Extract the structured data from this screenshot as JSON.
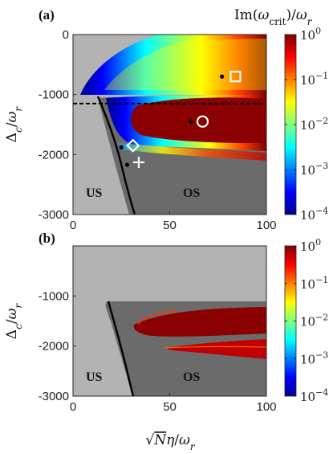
{
  "colorbar_title": "Im(ω_crit)/ω_r",
  "chart_data": [
    {
      "panel_label": "(a)",
      "type": "heatmap",
      "xlabel": "√N η/ω_r",
      "ylabel": "Δ_c/ω_r",
      "xlim": [
        0,
        100
      ],
      "ylim": [
        -3000,
        0
      ],
      "xticks": [
        "0",
        "50",
        "100"
      ],
      "yticks": [
        "0",
        "-1000",
        "-2000",
        "-3000"
      ],
      "colorbar": {
        "scale": "log",
        "range": [
          0.0001,
          1
        ],
        "ticks": [
          {
            "base": "10",
            "exp": "0"
          },
          {
            "base": "10",
            "exp": "−1"
          },
          {
            "base": "10",
            "exp": "−2"
          },
          {
            "base": "10",
            "exp": "−3"
          },
          {
            "base": "10",
            "exp": "−4"
          }
        ]
      },
      "dashed_line_y": -1150,
      "region_labels": [
        "US",
        "OS"
      ],
      "markers": [
        {
          "shape": "square",
          "x": 84,
          "y": -700
        },
        {
          "shape": "circle",
          "x": 67,
          "y": -1450
        },
        {
          "shape": "diamond",
          "x": 31,
          "y": -1850
        },
        {
          "shape": "plus",
          "x": 34,
          "y": -2130
        }
      ],
      "points": [
        {
          "x": 77,
          "y": -700
        },
        {
          "x": 61,
          "y": -1450
        },
        {
          "x": 25,
          "y": -1880
        },
        {
          "x": 28,
          "y": -2170
        }
      ]
    },
    {
      "panel_label": "(b)",
      "type": "heatmap",
      "xlabel": "√N η/ω_r",
      "ylabel": "Δ_c/ω_r",
      "xlim": [
        0,
        100
      ],
      "ylim": [
        -3000,
        0
      ],
      "xticks": [
        "0",
        "50",
        "100"
      ],
      "yticks": [
        "-1000",
        "-2000",
        "-3000"
      ],
      "colorbar": {
        "scale": "log",
        "range": [
          0.0001,
          1
        ],
        "ticks": [
          {
            "base": "10",
            "exp": "0"
          },
          {
            "base": "10",
            "exp": "−1"
          },
          {
            "base": "10",
            "exp": "−2"
          },
          {
            "base": "10",
            "exp": "−3"
          },
          {
            "base": "10",
            "exp": "−4"
          }
        ]
      },
      "region_labels": [
        "US",
        "OS"
      ]
    }
  ]
}
